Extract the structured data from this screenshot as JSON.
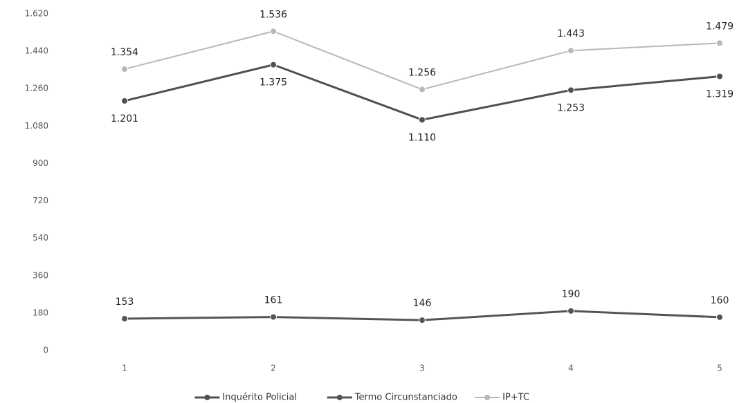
{
  "chart_data": {
    "type": "line",
    "categories": [
      "1",
      "2",
      "3",
      "4",
      "5"
    ],
    "series": [
      {
        "name": "Inquérito Policial",
        "color": "#505050",
        "values": [
          1201,
          1375,
          1110,
          1253,
          1319
        ],
        "value_labels": [
          "1.201",
          "1.375",
          "1.110",
          "1.253",
          "1.319"
        ]
      },
      {
        "name": "Termo Circunstanciado",
        "color": "#555555",
        "values": [
          153,
          161,
          146,
          190,
          160
        ],
        "value_labels": [
          "153",
          "161",
          "146",
          "190",
          "160"
        ]
      },
      {
        "name": "IP+TC",
        "color": "#b8b8b8",
        "values": [
          1354,
          1536,
          1256,
          1443,
          1479
        ],
        "value_labels": [
          "1.354",
          "1.536",
          "1.256",
          "1.443",
          "1.479"
        ]
      }
    ],
    "ylim": [
      0,
      1620
    ],
    "yticks": [
      0,
      180,
      360,
      540,
      720,
      900,
      {
        "value": 1080,
        "label": "1.080"
      },
      {
        "value": 1260,
        "label": "1.260"
      },
      {
        "value": 1440,
        "label": "1.440"
      },
      {
        "value": 1620,
        "label": "1.620"
      }
    ],
    "grid": false,
    "legend": "bottom"
  }
}
